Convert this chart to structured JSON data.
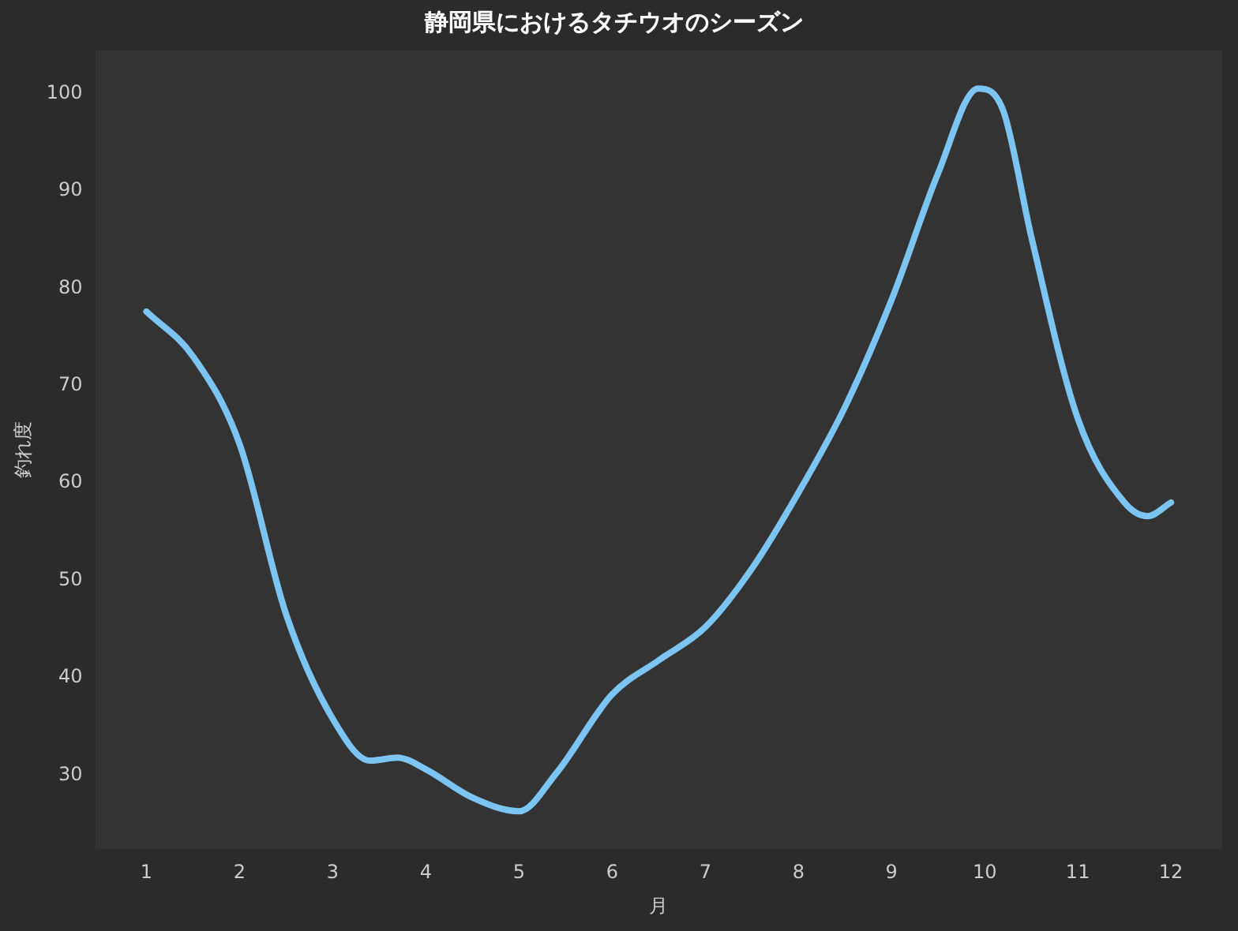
{
  "chart_data": {
    "type": "line",
    "title": "静岡県におけるタチウオのシーズン",
    "xlabel": "月",
    "ylabel": "釣れ度",
    "x": [
      1,
      1.5,
      2,
      2.5,
      3,
      3.4,
      3.7,
      4,
      4.5,
      5,
      5.4,
      6,
      6.5,
      7,
      7.5,
      8,
      8.5,
      9,
      9.5,
      9.93,
      10.2,
      10.5,
      11,
      11.5,
      11.75,
      12
    ],
    "series": [
      {
        "color": "#7cc4f2",
        "values": [
          77.6,
          73,
          64,
          46.5,
          35.8,
          31.5,
          31.8,
          30.6,
          27.7,
          26.3,
          30.2,
          38.3,
          41.8,
          45.2,
          51.2,
          59,
          67.8,
          78.8,
          91.8,
          100.5,
          98.2,
          85.3,
          66.6,
          58,
          56.6,
          58
        ]
      }
    ],
    "xlim": [
      0.45,
      12.55
    ],
    "xticks": [
      1,
      2,
      3,
      4,
      5,
      6,
      7,
      8,
      9,
      10,
      11,
      12
    ],
    "ylim": [
      22.4,
      104.4
    ],
    "yticks": [
      30,
      40,
      50,
      60,
      70,
      80,
      90,
      100
    ],
    "grid": false,
    "legend": false,
    "marker": "none",
    "line_style": "solid"
  }
}
